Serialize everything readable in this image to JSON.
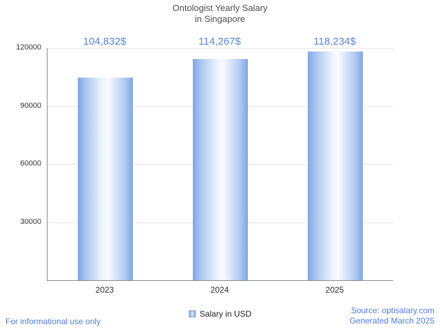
{
  "title": {
    "line1": "Ontologist Yearly Salary",
    "line2": "in Singapore"
  },
  "chart_data": {
    "type": "bar",
    "title": "Ontologist Yearly Salary in Singapore",
    "categories": [
      "2023",
      "2024",
      "2025"
    ],
    "values": [
      104832,
      114267,
      118234
    ],
    "value_labels": [
      "104,832$",
      "114,267$",
      "118,234$"
    ],
    "xlabel": "",
    "ylabel": "",
    "ylim": [
      0,
      120000
    ],
    "yticks": [
      30000,
      60000,
      90000,
      120000
    ],
    "grid": "horizontal",
    "legend": [
      {
        "label": "Salary in USD",
        "color": "#7fa6e4"
      }
    ],
    "legend_position": "bottom"
  },
  "legend": {
    "salary_label": "Salary in USD"
  },
  "footer": {
    "disclaimer": "For informational use only",
    "source": "Source: optisalary.com",
    "generated": "Generated March 2025"
  },
  "colors": {
    "bar_edge": "#7fa6e4",
    "bar_center": "#f8fbff",
    "annotation_text": "#5b86d2",
    "footer_text": "#4f7bd9",
    "gridline": "#e6e6e6",
    "axis": "#8a8a8a",
    "title_text": "#4d4d4d",
    "tick_text": "#333333"
  }
}
